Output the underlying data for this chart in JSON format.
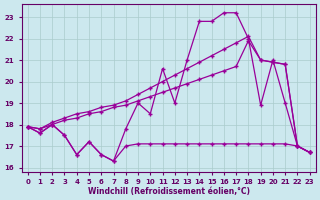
{
  "xlabel": "Windchill (Refroidissement éolien,°C)",
  "bg_color": "#cce8ee",
  "line_color": "#990099",
  "grid_color": "#aacccc",
  "axis_color": "#660066",
  "text_color": "#660066",
  "xlim": [
    -0.5,
    23.5
  ],
  "ylim": [
    15.8,
    23.6
  ],
  "xticks": [
    0,
    1,
    2,
    3,
    4,
    5,
    6,
    7,
    8,
    9,
    10,
    11,
    12,
    13,
    14,
    15,
    16,
    17,
    18,
    19,
    20,
    21,
    22,
    23
  ],
  "yticks": [
    16,
    17,
    18,
    19,
    20,
    21,
    22,
    23
  ],
  "series1_x": [
    0,
    1,
    2,
    3,
    4,
    5,
    6,
    7,
    8,
    9,
    10,
    11,
    12,
    13,
    14,
    15,
    16,
    17,
    18,
    19,
    20,
    21,
    22,
    23
  ],
  "series1_y": [
    17.9,
    17.6,
    18.0,
    17.5,
    16.6,
    17.2,
    16.6,
    16.3,
    17.0,
    17.1,
    17.1,
    17.1,
    17.1,
    17.1,
    17.1,
    17.1,
    17.1,
    17.1,
    17.1,
    17.1,
    17.1,
    17.1,
    17.0,
    16.7
  ],
  "series2_x": [
    0,
    1,
    2,
    3,
    4,
    5,
    6,
    7,
    8,
    9,
    10,
    11,
    12,
    13,
    14,
    15,
    16,
    17,
    18,
    19,
    20,
    21,
    22,
    23
  ],
  "series2_y": [
    17.9,
    17.8,
    18.0,
    18.2,
    18.3,
    18.5,
    18.6,
    18.8,
    18.9,
    19.1,
    19.3,
    19.5,
    19.7,
    19.9,
    20.1,
    20.3,
    20.5,
    20.7,
    21.9,
    21.0,
    20.9,
    20.8,
    17.0,
    16.7
  ],
  "series3_x": [
    0,
    1,
    2,
    3,
    4,
    5,
    6,
    7,
    8,
    9,
    10,
    11,
    12,
    13,
    14,
    15,
    16,
    17,
    18,
    19,
    20,
    21,
    22,
    23
  ],
  "series3_y": [
    17.9,
    17.8,
    18.1,
    18.3,
    18.5,
    18.6,
    18.8,
    18.9,
    19.1,
    19.4,
    19.7,
    20.0,
    20.3,
    20.6,
    20.9,
    21.2,
    21.5,
    21.8,
    22.1,
    21.0,
    20.9,
    20.8,
    17.0,
    16.7
  ],
  "series4_x": [
    0,
    1,
    2,
    3,
    4,
    5,
    6,
    7,
    8,
    9,
    10,
    11,
    12,
    13,
    14,
    15,
    16,
    17,
    18,
    19,
    20,
    21,
    22,
    23
  ],
  "series4_y": [
    17.9,
    17.6,
    18.0,
    17.5,
    16.6,
    17.2,
    16.6,
    16.3,
    17.8,
    19.0,
    18.5,
    20.6,
    19.0,
    21.0,
    22.8,
    22.8,
    23.2,
    23.2,
    22.0,
    18.9,
    21.0,
    19.0,
    17.0,
    16.7
  ]
}
